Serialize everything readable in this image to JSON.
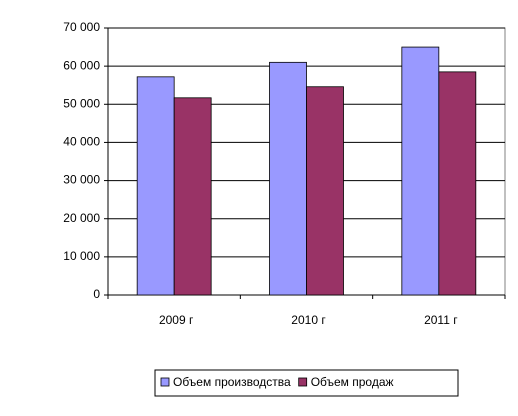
{
  "chart_data": {
    "type": "bar",
    "categories": [
      "2009 г",
      "2010 г",
      "2011 г"
    ],
    "series": [
      {
        "name": "Объем производства",
        "color": "#9999ff",
        "values": [
          57200,
          61000,
          65000
        ]
      },
      {
        "name": "Объем продаж",
        "color": "#993366",
        "values": [
          51700,
          54600,
          58500
        ]
      }
    ],
    "ylim": [
      0,
      70000
    ],
    "yticks": [
      0,
      {
        "value": 10000,
        "label": "10 000"
      },
      {
        "value": 20000,
        "label": "20 000"
      },
      {
        "value": 30000,
        "label": "30 000"
      },
      {
        "value": 40000,
        "label": "40 000"
      },
      {
        "value": 50000,
        "label": "50 000"
      },
      {
        "value": 60000,
        "label": "60 000"
      },
      {
        "value": 70000,
        "label": "70 000"
      }
    ],
    "grid": true,
    "legend": "bottom"
  }
}
